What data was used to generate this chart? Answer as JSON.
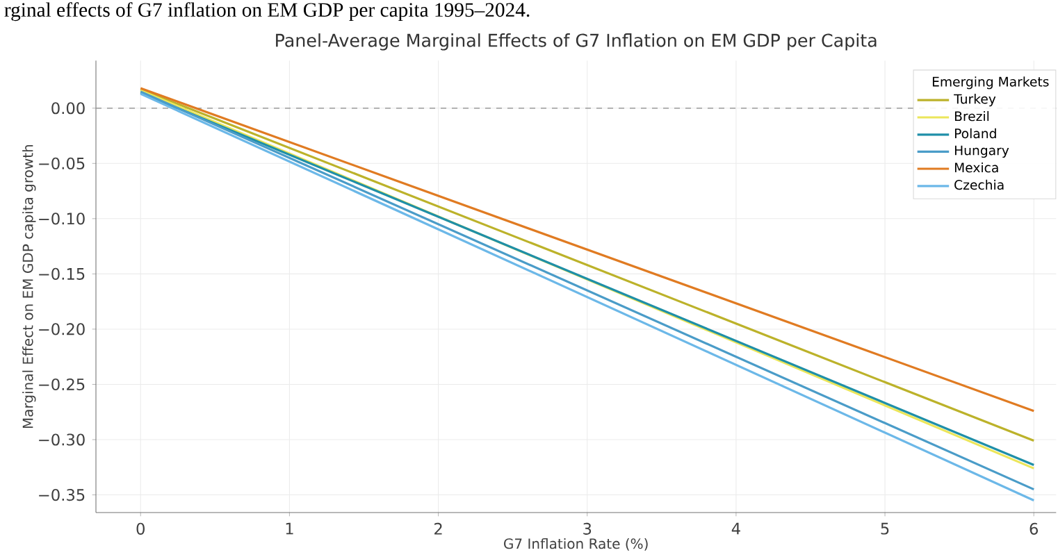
{
  "chart_data": {
    "type": "line",
    "title": "Panel-Average Marginal Effects of G7 Inflation on EM GDP per Capita",
    "xlabel": "G7 Inflation Rate (%)",
    "ylabel": "Marginal Effect on EM GDP capita growth",
    "legend_title": "Emerging Markets",
    "annotations": [
      "rginal effects of G7 inflation on EM GDP per capita 1995–2024."
    ],
    "x": [
      0,
      6
    ],
    "series": [
      {
        "name": "Turkey",
        "color": "#bcb22a",
        "values": [
          0.017,
          -0.301
        ]
      },
      {
        "name": "Brezil",
        "color": "#ece65a",
        "values": [
          0.016,
          -0.326
        ]
      },
      {
        "name": "Poland",
        "color": "#1f8fa8",
        "values": [
          0.014,
          -0.323
        ]
      },
      {
        "name": "Hungary",
        "color": "#4a9cc8",
        "values": [
          0.015,
          -0.345
        ]
      },
      {
        "name": "Mexica",
        "color": "#e07b22",
        "values": [
          0.018,
          -0.274
        ]
      },
      {
        "name": "Czechia",
        "color": "#6cb8e8",
        "values": [
          0.013,
          -0.355
        ]
      }
    ],
    "xlim": [
      -0.3,
      6.15
    ],
    "ylim": [
      -0.366,
      0.043
    ],
    "xticks": [
      0,
      1,
      2,
      3,
      4,
      5,
      6
    ],
    "yticks": [
      {
        "value": 0,
        "label": "0.00"
      },
      {
        "value": -0.05,
        "label": "−0.05"
      },
      {
        "value": -0.1,
        "label": "−0.10"
      },
      {
        "value": -0.15,
        "label": "−0.15"
      },
      {
        "value": -0.2,
        "label": "−0.20"
      },
      {
        "value": -0.25,
        "label": "−0.25"
      },
      {
        "value": -0.3,
        "label": "−0.30"
      },
      {
        "value": -0.35,
        "label": "−0.35"
      }
    ],
    "ref_lines": [
      {
        "axis": "y",
        "value": 0,
        "color": "#999999",
        "line_style": "dashed"
      }
    ],
    "grid": true,
    "legend": "top right",
    "marker": "none",
    "line_style": "solid"
  }
}
